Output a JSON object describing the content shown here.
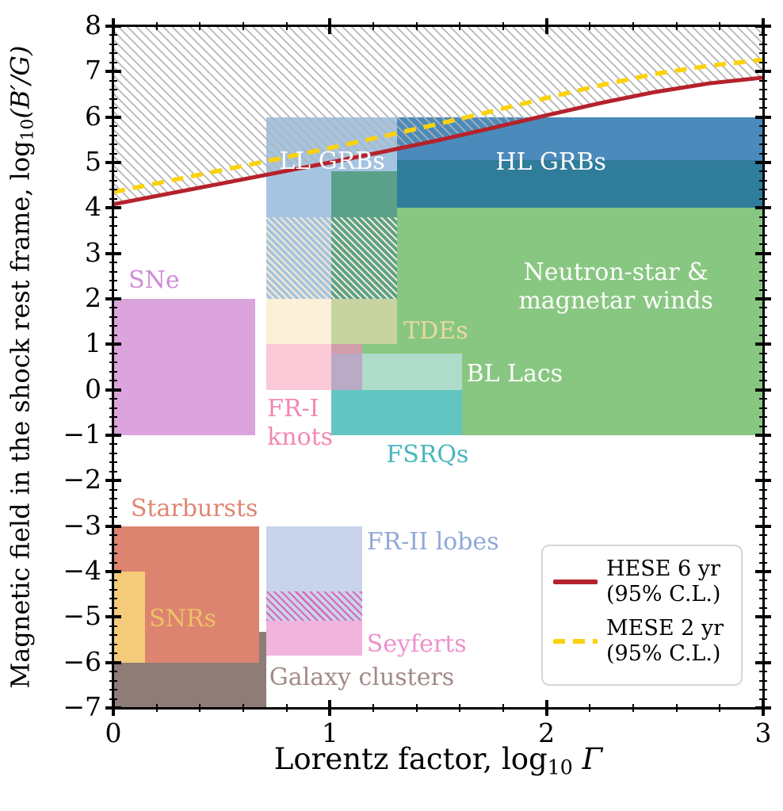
{
  "axes": {
    "xlabel_pre": "Lorentz factor, log",
    "xlabel_sub": "10",
    "xlabel_post": " Γ",
    "ylabel_pre": "Magnetic field in the shock rest frame, log",
    "ylabel_sub": "10",
    "ylabel_post": "(B′/G)"
  },
  "legend": {
    "entries": [
      {
        "name": "hese-6yr",
        "line1": "HESE 6 yr",
        "line2": "(95% C.L.)",
        "color": "#b5222b",
        "dashed": false
      },
      {
        "name": "mese-2yr",
        "line1": "MESE 2 yr",
        "line2": "(95% C.L.)",
        "color": "#fbd20c",
        "dashed": true
      }
    ]
  },
  "chart_data": {
    "type": "area",
    "title": "",
    "xlabel": "Lorentz factor, log10 Γ",
    "ylabel": "Magnetic field in the shock rest frame, log10(B′/G)",
    "xlim": [
      0,
      3
    ],
    "ylim": [
      -7,
      8
    ],
    "x_major_ticks": [
      0,
      1,
      2,
      3
    ],
    "y_major_ticks": [
      -7,
      -6,
      -5,
      -4,
      -3,
      -2,
      -1,
      0,
      1,
      2,
      3,
      4,
      5,
      6,
      7,
      8
    ],
    "minor_tick_step": 0.2,
    "grid": false,
    "legend_position": "lower right",
    "exclusion_hatch_color": "#b2b2b2",
    "regions": [
      {
        "name": "galaxy-clusters",
        "x0": 0,
        "x1": 0.705,
        "y0": -7,
        "y1": -5.33,
        "color": "#8e7c77"
      },
      {
        "name": "starbursts",
        "x0": 0,
        "x1": 0.673,
        "y0": -6,
        "y1": -3,
        "color": "#dc8470"
      },
      {
        "name": "snrs",
        "x0": 0,
        "x1": 0.147,
        "y0": -6,
        "y1": -4,
        "color": "#f4cb7a"
      },
      {
        "name": "sne",
        "x0": 0,
        "x1": 0.655,
        "y0": -1,
        "y1": 2,
        "color": "#dca4dd"
      },
      {
        "name": "seyferts",
        "x0": 0.706,
        "x1": 1.15,
        "y0": -5.85,
        "y1": -4.44,
        "color": "#f1b4dd"
      },
      {
        "name": "fr2-lobes",
        "x0": 0.706,
        "x1": 1.15,
        "y0": -5.08,
        "y1": -3,
        "color": "#c9d4ec"
      },
      {
        "name": "fr2-seyferts-overlap",
        "x0": 0.706,
        "x1": 1.15,
        "y0": -5.08,
        "y1": -4.44,
        "color": "#c9d4ec",
        "hatch": {
          "color": "#d968b4",
          "width": 2.2,
          "period": 6.4
        }
      },
      {
        "name": "neutron-star-magnetar-winds",
        "x0": 1.005,
        "x1": 3,
        "y0": -1,
        "y1": 4.8,
        "color": "#88c781"
      },
      {
        "name": "fr1-knots",
        "x0": 0.706,
        "x1": 1.15,
        "y0": 0,
        "y1": 1,
        "color": "#fbc9d7"
      },
      {
        "name": "fr1-knots-over-winds",
        "x0": 1.005,
        "x1": 1.15,
        "y0": 0.8,
        "y1": 1,
        "color": "#d29daa"
      },
      {
        "name": "bl-lacs",
        "x0": 1.005,
        "x1": 1.61,
        "y0": 0,
        "y1": 0.8,
        "color": "#afdbca"
      },
      {
        "name": "bl-lacs-fr1-overlap",
        "x0": 1.005,
        "x1": 1.15,
        "y0": 0,
        "y1": 0.8,
        "color": "#b9aac5"
      },
      {
        "name": "fsrqs",
        "x0": 1.005,
        "x1": 1.61,
        "y0": -1,
        "y1": 0,
        "color": "#63c5c2"
      },
      {
        "name": "tdes",
        "x0": 0.706,
        "x1": 1.005,
        "y0": 1,
        "y1": 2,
        "color": "#fcf0d8"
      },
      {
        "name": "tdes-over-winds",
        "x0": 1.005,
        "x1": 1.31,
        "y0": 1,
        "y1": 2,
        "color": "#c7d4a2"
      },
      {
        "name": "ll-grbs",
        "x0": 0.706,
        "x1": 1.31,
        "y0": 2,
        "y1": 6,
        "color": "#a5c4e1"
      },
      {
        "name": "ll-grbs-over-winds",
        "x0": 1.005,
        "x1": 1.31,
        "y0": 2,
        "y1": 4.8,
        "color": "#5ba189"
      },
      {
        "name": "ll-grbs-uncertainty",
        "x0": 0.706,
        "x1": 1.31,
        "y0": 2,
        "y1": 3.8,
        "color": "transparent",
        "hatch": {
          "color": "#f3e9d1",
          "width": 2.2,
          "period": 6.0
        }
      },
      {
        "name": "hl-grbs",
        "x0": 1.31,
        "x1": 3,
        "y0": 5.06,
        "y1": 6,
        "color": "#4b8bbb"
      },
      {
        "name": "hl-grbs-lower",
        "x0": 1.31,
        "x1": 3,
        "y0": 4,
        "y1": 5.06,
        "color": "#307c9b"
      }
    ],
    "region_labels": [
      {
        "name": "sne",
        "lines": [
          "SNe"
        ],
        "x": 0.07,
        "y": 2.4,
        "color": "#cf8cd6",
        "align": "left"
      },
      {
        "name": "ll-grbs",
        "lines": [
          "LL GRBs"
        ],
        "x": 1.01,
        "y": 5.02,
        "color": "#ffffff",
        "align": "center"
      },
      {
        "name": "hl-grbs",
        "lines": [
          "HL GRBs"
        ],
        "x": 2.02,
        "y": 5.0,
        "color": "#ffffff",
        "align": "center"
      },
      {
        "name": "neutron-star-magnetar-winds",
        "lines": [
          "Neutron-star &",
          "magnetar winds"
        ],
        "x": 2.32,
        "y": 2.27,
        "color": "#ffffff",
        "align": "center"
      },
      {
        "name": "tdes",
        "lines": [
          "TDEs"
        ],
        "x": 1.34,
        "y": 1.28,
        "color": "#ead9a1",
        "align": "left"
      },
      {
        "name": "bl-lacs",
        "lines": [
          "BL Lacs"
        ],
        "x": 1.63,
        "y": 0.34,
        "color": "#ffffff",
        "align": "left"
      },
      {
        "name": "fr1-knots",
        "lines": [
          "FR-I",
          "knots"
        ],
        "x": 0.71,
        "y": -0.74,
        "color": "#f487b3",
        "align": "left"
      },
      {
        "name": "fsrqs",
        "lines": [
          "FSRQs"
        ],
        "x": 1.26,
        "y": -1.44,
        "color": "#48b6bd",
        "align": "left"
      },
      {
        "name": "starbursts",
        "lines": [
          "Starbursts"
        ],
        "x": 0.08,
        "y": -2.62,
        "color": "#df8672",
        "align": "left"
      },
      {
        "name": "snrs",
        "lines": [
          "SNRs"
        ],
        "x": 0.165,
        "y": -5.04,
        "color": "#edc167",
        "align": "left"
      },
      {
        "name": "fr2-lobes",
        "lines": [
          "FR-II lobes"
        ],
        "x": 1.17,
        "y": -3.36,
        "color": "#8fa9d9",
        "align": "left"
      },
      {
        "name": "seyferts",
        "lines": [
          "Seyferts"
        ],
        "x": 1.17,
        "y": -5.6,
        "color": "#ed90cc",
        "align": "left"
      },
      {
        "name": "galaxy-clusters",
        "lines": [
          "Galaxy clusters"
        ],
        "x": 0.72,
        "y": -6.34,
        "color": "#a18a85",
        "align": "left"
      }
    ],
    "series": [
      {
        "name": "HESE 6 yr (95% C.L.)",
        "color": "#b5222b",
        "dashed": false,
        "points": [
          [
            0,
            4.08
          ],
          [
            0.25,
            4.31
          ],
          [
            0.5,
            4.54
          ],
          [
            0.75,
            4.77
          ],
          [
            1,
            5.0
          ],
          [
            1.25,
            5.24
          ],
          [
            1.5,
            5.49
          ],
          [
            1.75,
            5.76
          ],
          [
            2,
            6.04
          ],
          [
            2.25,
            6.31
          ],
          [
            2.5,
            6.55
          ],
          [
            2.75,
            6.74
          ],
          [
            3,
            6.87
          ]
        ]
      },
      {
        "name": "MESE 2 yr (95% C.L.)",
        "color": "#fbd20c",
        "dashed": true,
        "points": [
          [
            0,
            4.35
          ],
          [
            0.25,
            4.59
          ],
          [
            0.5,
            4.83
          ],
          [
            0.75,
            5.07
          ],
          [
            1,
            5.32
          ],
          [
            1.25,
            5.58
          ],
          [
            1.5,
            5.85
          ],
          [
            1.75,
            6.13
          ],
          [
            2,
            6.42
          ],
          [
            2.25,
            6.7
          ],
          [
            2.5,
            6.95
          ],
          [
            2.75,
            7.13
          ],
          [
            3,
            7.26
          ]
        ]
      }
    ]
  }
}
